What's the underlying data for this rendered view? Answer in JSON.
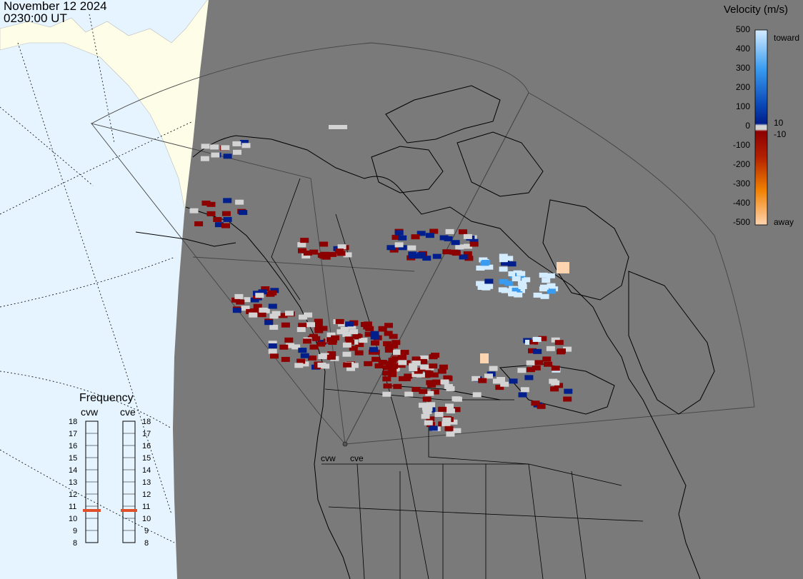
{
  "header": {
    "date": "November 12 2024",
    "time": "0230:00 UT"
  },
  "velocity_scale": {
    "title": "Velocity (m/s)",
    "ticks": [
      "500",
      "400",
      "300",
      "200",
      "100",
      "10",
      "0",
      "-10",
      "-100",
      "-200",
      "-300",
      "-400",
      "-500"
    ],
    "toward_label": "toward",
    "away_label": "away",
    "colors": {
      "toward_strong": "#d4ecff",
      "toward_mid": "#3a9cf0",
      "toward_low": "#001e8c",
      "zero": "#d3d3d3",
      "away_low": "#8c0000",
      "away_mid": "#e06400",
      "away_strong": "#ffd4b0"
    }
  },
  "frequency": {
    "title": "Frequency",
    "radars": [
      {
        "code": "cvw",
        "value_mhz": 10.8
      },
      {
        "code": "cve",
        "value_mhz": 10.8
      }
    ],
    "ticks": [
      "18",
      "17",
      "16",
      "15",
      "14",
      "13",
      "12",
      "11",
      "10",
      "9",
      "8"
    ],
    "indicator_color": "#e0502a"
  },
  "sites": {
    "cvw_label": "cvw",
    "cve_label": "cve"
  },
  "map": {
    "ocean_color": "#e6f4ff",
    "land_color": "#fdfde8",
    "night_color": "#7a7a7a",
    "coast_color": "#000000"
  }
}
